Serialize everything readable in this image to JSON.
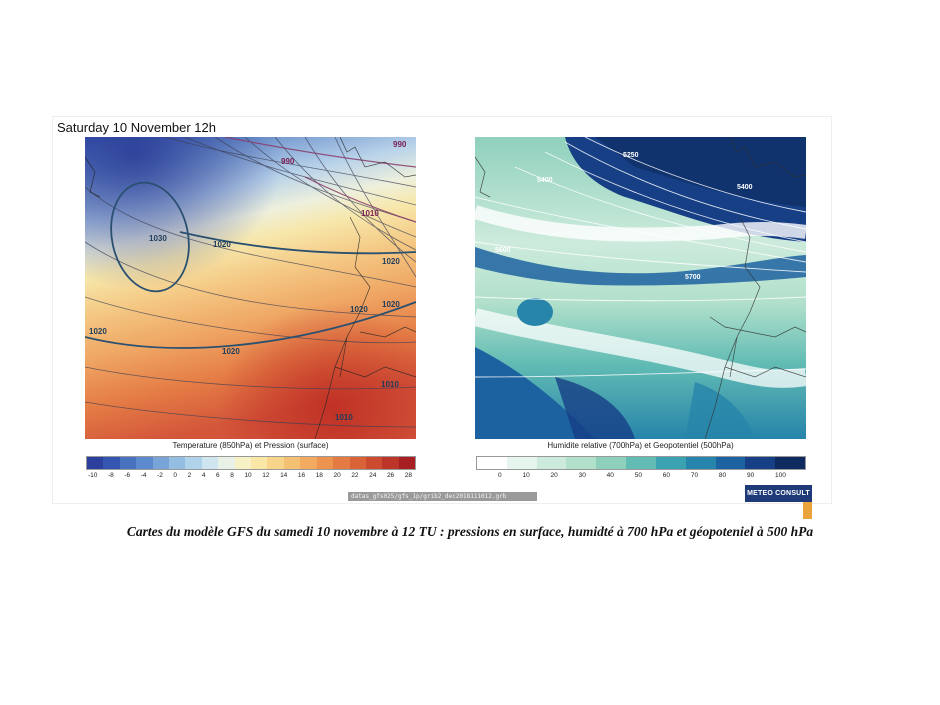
{
  "header": {
    "date_label": "Saturday 10 November 12h"
  },
  "left_map": {
    "caption": "Temperature (850hPa) et Pression (surface)",
    "isobar_labels": [
      "990",
      "1010",
      "1030",
      "1020",
      "1020",
      "1020",
      "1020",
      "1020",
      "1020",
      "1010",
      "1010",
      "990"
    ],
    "colorbar": {
      "ticks": [
        "-10",
        "-8",
        "-6",
        "-4",
        "-2",
        "0",
        "2",
        "4",
        "6",
        "8",
        "10",
        "12",
        "14",
        "16",
        "18",
        "20",
        "22",
        "24",
        "26",
        "28"
      ],
      "colors": [
        "#2c3f9c",
        "#3556b0",
        "#4871c0",
        "#5d8acc",
        "#79a4d8",
        "#94bde2",
        "#b0d3ea",
        "#cfe6f0",
        "#e9f1e6",
        "#f6f2c6",
        "#f8e7a6",
        "#f7d58a",
        "#f4c074",
        "#f1aa60",
        "#ec934f",
        "#e47b42",
        "#d96238",
        "#cc4a30",
        "#bd3428",
        "#a81f22"
      ]
    }
  },
  "right_map": {
    "caption": "Humidite relative (700hPa) et Geopotentiel (500hPa)",
    "contour_labels": [
      "5250",
      "5400",
      "5400",
      "5400",
      "5400",
      "5600",
      "5700"
    ],
    "colorbar": {
      "ticks": [
        "0",
        "10",
        "20",
        "30",
        "40",
        "50",
        "60",
        "70",
        "80",
        "90",
        "100"
      ],
      "colors": [
        "#ffffff",
        "#e6f5ee",
        "#cdebdc",
        "#b1e0cb",
        "#8fd0bd",
        "#62bcb4",
        "#3aa2b0",
        "#2784aa",
        "#1d62a0",
        "#163f86",
        "#0e2a5e"
      ]
    }
  },
  "source_text": "datas_gfs025/gfs_1p/grib2_dec2018111012.grb",
  "logo_text": "METEO CONSULT",
  "bottom_caption": "Cartes du modèle GFS du samedi 10 novembre à 12 TU : pressions en surface, humidté à 700 hPa et géopoteniel à 500 hPa"
}
